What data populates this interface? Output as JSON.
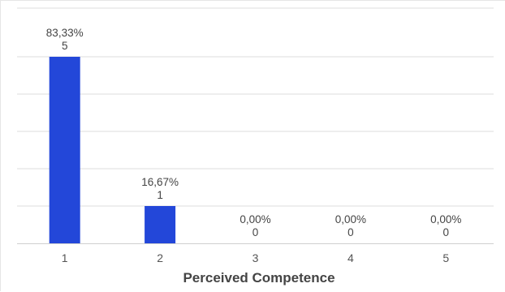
{
  "chart_data": {
    "type": "bar",
    "categories": [
      "1",
      "2",
      "3",
      "4",
      "5"
    ],
    "values": [
      5,
      1,
      0,
      0,
      0
    ],
    "percent_labels": [
      "83,33%",
      "16,67%",
      "0,00%",
      "0,00%",
      "0,00%"
    ],
    "count_labels": [
      "5",
      "1",
      "0",
      "0",
      "0"
    ],
    "xlabel": "Perceived Competence",
    "ylabel": "",
    "ylim": [
      0,
      5
    ],
    "grid": true,
    "bar_color": "#2347d9"
  }
}
